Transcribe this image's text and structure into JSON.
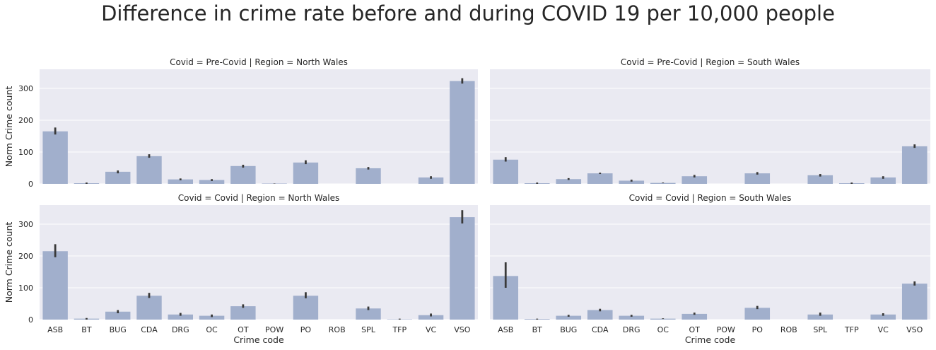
{
  "chart_data": {
    "type": "bar",
    "title": "Difference in crime rate before and during COVID 19 per 10,000 people",
    "xlabel": "Crime code",
    "ylabel": "Norm Crime count",
    "categories": [
      "ASB",
      "BT",
      "BUG",
      "CDA",
      "DRG",
      "OC",
      "OT",
      "POW",
      "PO",
      "ROB",
      "SPL",
      "TFP",
      "VC",
      "VSO"
    ],
    "yticks": [
      0,
      100,
      200,
      300
    ],
    "ylim": [
      0,
      360
    ],
    "grid": true,
    "bar_color": "#a1afcc",
    "error_color": "#3a3a3a",
    "panel_bg": "#eaeaf2",
    "panels": [
      {
        "title": "Covid = Pre-Covid | Region = North Wales",
        "values": [
          165,
          2,
          38,
          87,
          14,
          12,
          56,
          1,
          67,
          0,
          49,
          0,
          20,
          323
        ],
        "error_bars": [
          [
            155,
            177
          ],
          [
            0,
            4
          ],
          [
            33,
            42
          ],
          [
            82,
            93
          ],
          [
            11,
            17
          ],
          [
            9,
            15
          ],
          [
            51,
            60
          ],
          [
            0,
            1
          ],
          [
            62,
            74
          ],
          [
            0,
            0
          ],
          [
            45,
            53
          ],
          [
            0,
            0
          ],
          [
            16,
            24
          ],
          [
            315,
            332
          ]
        ]
      },
      {
        "title": "Covid = Pre-Covid | Region = South Wales",
        "values": [
          76,
          2,
          15,
          33,
          10,
          3,
          24,
          0,
          33,
          0,
          27,
          2,
          20,
          118
        ],
        "error_bars": [
          [
            70,
            84
          ],
          [
            0,
            4
          ],
          [
            12,
            18
          ],
          [
            31,
            35
          ],
          [
            7,
            13
          ],
          [
            2,
            4
          ],
          [
            20,
            28
          ],
          [
            0,
            0
          ],
          [
            29,
            37
          ],
          [
            0,
            0
          ],
          [
            23,
            31
          ],
          [
            0,
            4
          ],
          [
            16,
            24
          ],
          [
            113,
            124
          ]
        ]
      },
      {
        "title": "Covid = Covid | Region = North Wales",
        "values": [
          215,
          3,
          25,
          75,
          16,
          12,
          42,
          0,
          75,
          0,
          35,
          1,
          14,
          322
        ],
        "error_bars": [
          [
            196,
            237
          ],
          [
            0,
            5
          ],
          [
            20,
            30
          ],
          [
            68,
            84
          ],
          [
            12,
            21
          ],
          [
            8,
            16
          ],
          [
            37,
            48
          ],
          [
            0,
            0
          ],
          [
            67,
            86
          ],
          [
            0,
            0
          ],
          [
            30,
            41
          ],
          [
            0,
            3
          ],
          [
            10,
            19
          ],
          [
            302,
            344
          ]
        ]
      },
      {
        "title": "Covid = Covid | Region = South Wales",
        "values": [
          137,
          2,
          12,
          30,
          12,
          3,
          18,
          0,
          37,
          0,
          16,
          0,
          16,
          113
        ],
        "error_bars": [
          [
            100,
            180
          ],
          [
            0,
            3
          ],
          [
            9,
            15
          ],
          [
            26,
            34
          ],
          [
            9,
            15
          ],
          [
            2,
            4
          ],
          [
            15,
            22
          ],
          [
            0,
            0
          ],
          [
            33,
            43
          ],
          [
            0,
            0
          ],
          [
            12,
            22
          ],
          [
            0,
            0
          ],
          [
            12,
            20
          ],
          [
            107,
            120
          ]
        ]
      }
    ]
  }
}
